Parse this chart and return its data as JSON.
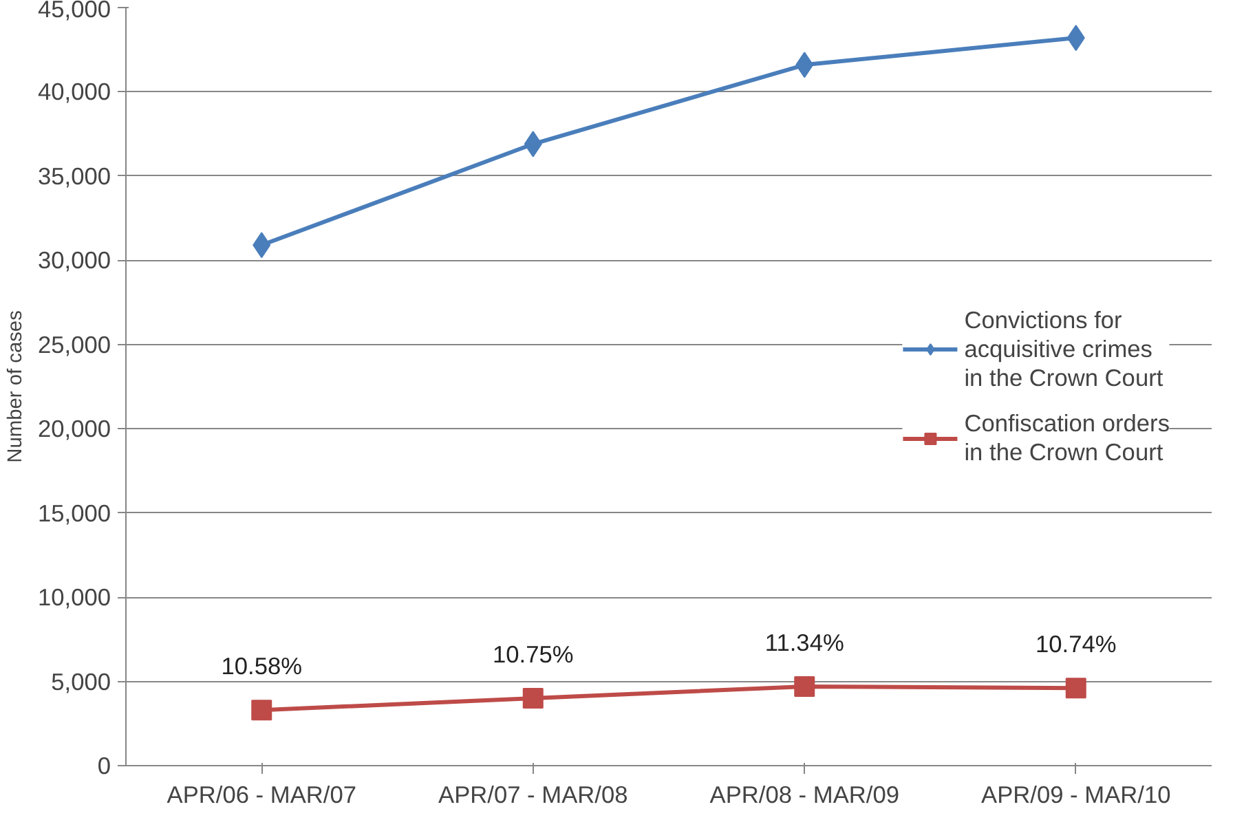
{
  "chart_data": {
    "type": "line",
    "ylabel": "Number of cases",
    "categories": [
      "APR/06 - MAR/07",
      "APR/07 - MAR/08",
      "APR/08 - MAR/09",
      "APR/09 - MAR/10"
    ],
    "series": [
      {
        "name": "Convictions for acquisitive crimes in the Crown Court",
        "color": "#4a7ebb",
        "marker": "diamond",
        "values": [
          30900,
          36900,
          41600,
          43200
        ]
      },
      {
        "name": "Confiscation orders in the Crown Court",
        "color": "#be4b48",
        "marker": "square",
        "values": [
          3300,
          4000,
          4700,
          4600
        ]
      }
    ],
    "annotations": [
      {
        "text": "10.58%",
        "x": "APR/06 - MAR/07",
        "y": 3300
      },
      {
        "text": "10.75%",
        "x": "APR/07 - MAR/08",
        "y": 4000
      },
      {
        "text": "11.34%",
        "x": "APR/08 - MAR/09",
        "y": 4700
      },
      {
        "text": "10.74%",
        "x": "APR/09 - MAR/10",
        "y": 4600
      }
    ],
    "ylim": [
      0,
      45000
    ],
    "yticks": [
      0,
      {
        "value": 5000,
        "label": "5,000"
      },
      {
        "value": 10000,
        "label": "10,000"
      },
      {
        "value": 15000,
        "label": "15,000"
      },
      {
        "value": 20000,
        "label": "20,000"
      },
      {
        "value": 25000,
        "label": "25,000"
      },
      {
        "value": 30000,
        "label": "30,000"
      },
      {
        "value": 35000,
        "label": "35,000"
      },
      {
        "value": 40000,
        "label": "40,000"
      },
      {
        "value": 45000,
        "label": "45,000"
      }
    ],
    "grid": "y",
    "legend": "right",
    "line_style": "solid"
  }
}
